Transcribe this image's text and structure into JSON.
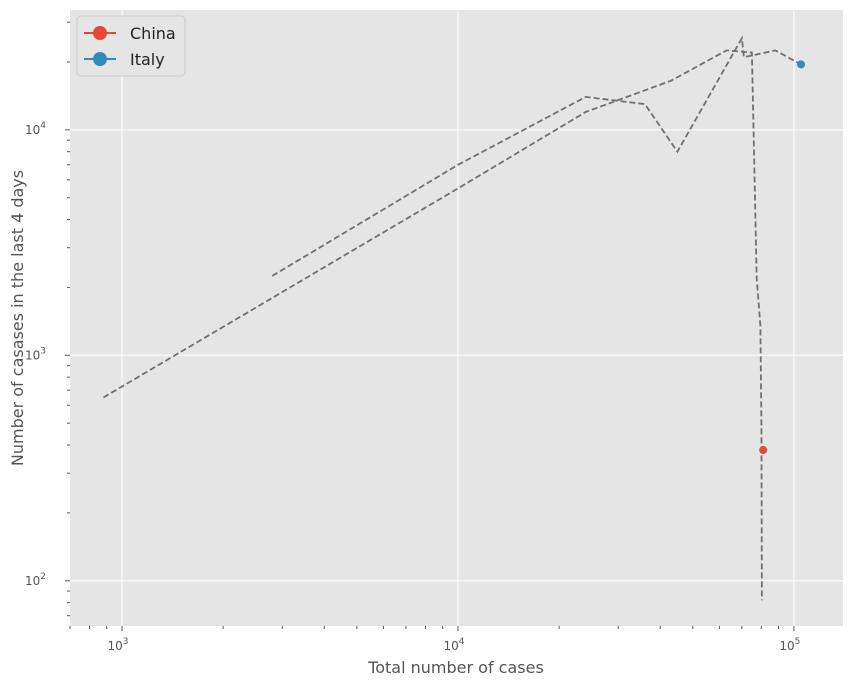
{
  "chart_data": {
    "type": "scatter",
    "title": "",
    "xlabel": "Total number of cases",
    "ylabel": "Number of casases in the last 4 days",
    "xscale": "log",
    "yscale": "log",
    "xlim": [
      700,
      140000
    ],
    "ylim": [
      63,
      34000
    ],
    "grid": true,
    "legend_position": "top-left",
    "x_ticks": [
      {
        "value": 1000,
        "base": "10",
        "exp": "3"
      },
      {
        "value": 10000,
        "base": "10",
        "exp": "4"
      },
      {
        "value": 100000,
        "base": "10",
        "exp": "5"
      }
    ],
    "y_ticks": [
      {
        "value": 100,
        "base": "10",
        "exp": "2"
      },
      {
        "value": 1000,
        "base": "10",
        "exp": "3"
      },
      {
        "value": 10000,
        "base": "10",
        "exp": "4"
      }
    ],
    "series": [
      {
        "name": "China",
        "color": "#E24A33",
        "marker": {
          "x": 81000,
          "y": 380
        },
        "trajectory": [
          {
            "x": 880,
            "y": 650
          },
          {
            "x": 10000,
            "y": 5500
          },
          {
            "x": 24000,
            "y": 12000
          },
          {
            "x": 43000,
            "y": 16500
          },
          {
            "x": 63000,
            "y": 22500
          },
          {
            "x": 75000,
            "y": 22000
          },
          {
            "x": 77500,
            "y": 2200
          },
          {
            "x": 79500,
            "y": 1350
          },
          {
            "x": 80000,
            "y": 500
          },
          {
            "x": 80300,
            "y": 82
          }
        ]
      },
      {
        "name": "Italy",
        "color": "#348ABD",
        "marker": {
          "x": 105000,
          "y": 19500
        },
        "trajectory": [
          {
            "x": 2800,
            "y": 2250
          },
          {
            "x": 10000,
            "y": 7000
          },
          {
            "x": 24000,
            "y": 14000
          },
          {
            "x": 36000,
            "y": 13000
          },
          {
            "x": 45000,
            "y": 8000
          },
          {
            "x": 70000,
            "y": 25500
          },
          {
            "x": 71000,
            "y": 21000
          },
          {
            "x": 88000,
            "y": 22500
          },
          {
            "x": 105000,
            "y": 19500
          }
        ]
      }
    ],
    "trajectory_color": "#707070"
  }
}
